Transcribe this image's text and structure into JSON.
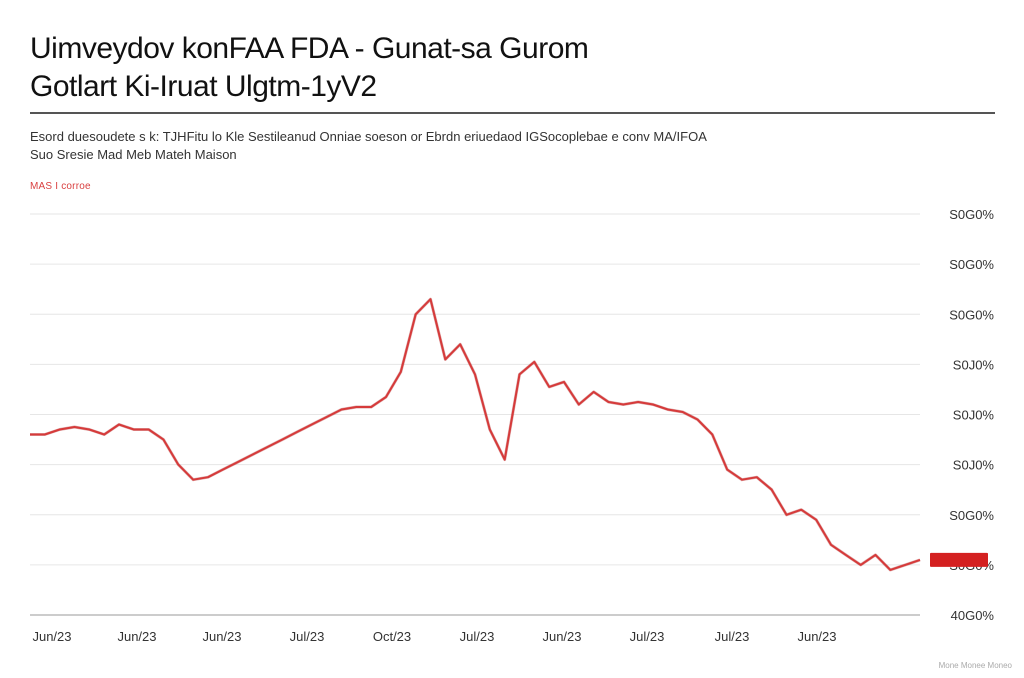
{
  "header": {
    "title_line1": "Uimveydov konFAA FDA - Gunat-sa Gurom",
    "title_line2": "Gotlart Ki-Iruat Ulgtm-1yV2",
    "subtitle_line1": "Esord duesoudete s k: TJHFitu lo Kle Sestileanud Onniae soeson or Ebrdn eriuedaod IGSocoplebae e conv MA/IFOA",
    "subtitle_line2": "Suo Sresie Mad Meb Mateh Maison",
    "source": "MAS I corroe",
    "footer": "Mone Monee Moneo"
  },
  "colors": {
    "line": "#d63a3a",
    "line_dark": "#a01818",
    "grid": "#e6e6e6",
    "last_value_box": "#d42020"
  },
  "chart_data": {
    "type": "line",
    "title": "Uimveydov konFAA FDA - Gunat-sa Gurom",
    "xlabel": "",
    "ylabel": "",
    "y_tick_labels": [
      "S0G0%",
      "S0G0%",
      "S0G0%",
      "S0J0%",
      "S0J0%",
      "S0J0%",
      "S0G0%",
      "S0G0%",
      "40G0%"
    ],
    "x_tick_labels": [
      "Jun/23",
      "Jun/23",
      "Jun/23",
      "Jul/23",
      "Oct/23",
      "Jul/23",
      "Jun/23",
      "Jul/23",
      "Jul/23",
      "Jun/23"
    ],
    "last_value_label": "",
    "ylim": [
      0,
      8
    ],
    "grid": true,
    "series": [
      {
        "values": [
          3.6,
          3.6,
          3.7,
          3.75,
          3.7,
          3.6,
          3.8,
          3.7,
          3.7,
          3.5,
          3.0,
          2.7,
          2.75,
          2.9,
          3.05,
          3.2,
          3.35,
          3.5,
          3.65,
          3.8,
          3.95,
          4.1,
          4.15,
          4.15,
          4.35,
          4.85,
          6.0,
          6.3,
          5.1,
          5.4,
          4.8,
          3.7,
          3.1,
          4.8,
          5.05,
          4.55,
          4.65,
          4.2,
          4.45,
          4.25,
          4.2,
          4.25,
          4.2,
          4.1,
          4.05,
          3.9,
          3.6,
          2.9,
          2.7,
          2.75,
          2.5,
          2.0,
          2.1,
          1.9,
          1.4,
          1.2,
          1.0,
          1.2,
          0.9,
          1.0,
          1.1
        ]
      }
    ]
  }
}
